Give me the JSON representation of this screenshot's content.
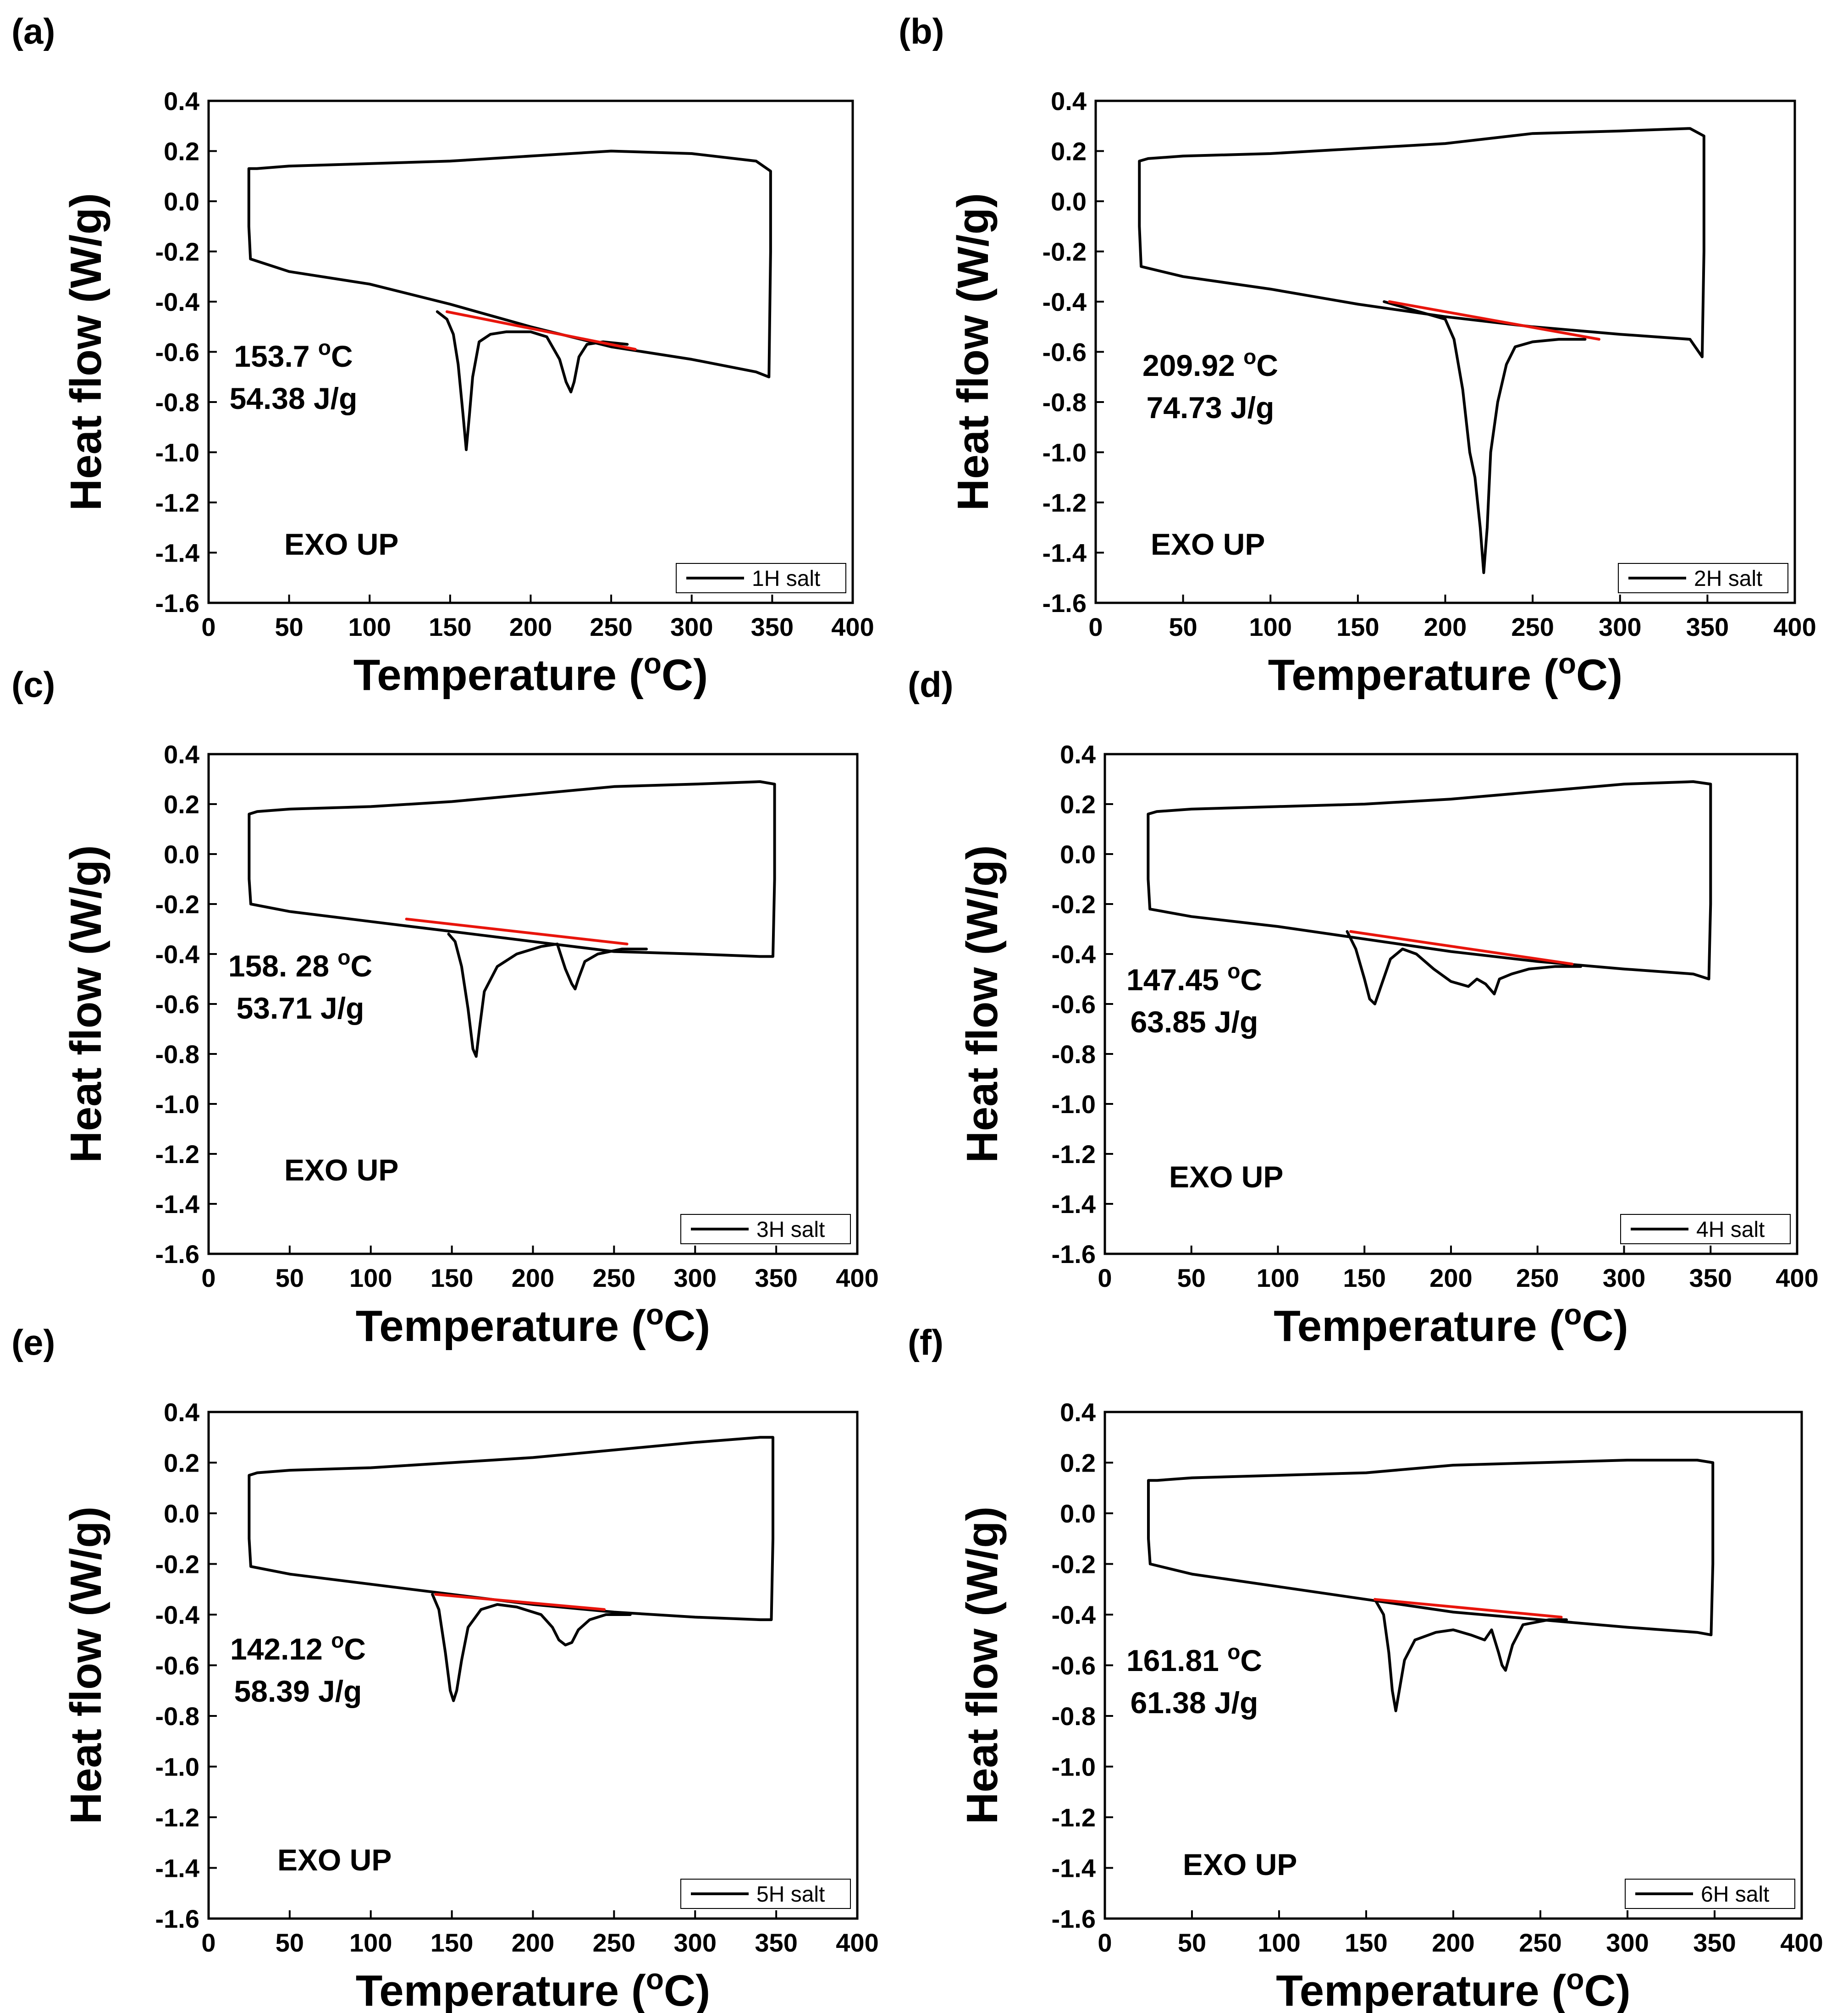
{
  "chart_data": [
    {
      "panel": "(a)",
      "type": "line",
      "xlabel": "Temperature (oC)",
      "ylabel": "Heat flow (W/g)",
      "xlim": [
        0,
        400
      ],
      "ylim": [
        -1.6,
        0.4
      ],
      "xticks": [
        "0",
        "50",
        "100",
        "150",
        "200",
        "250",
        "300",
        "350",
        "400"
      ],
      "yticks": [
        "0.4",
        "0.2",
        "0.0",
        "-0.2",
        "-0.4",
        "-0.6",
        "-0.8",
        "-1.0",
        "-1.2",
        "-1.4",
        "-1.6"
      ],
      "annotation_lines": [
        "153.7 oC",
        "54.38 J/g"
      ],
      "exo_label": "EXO UP",
      "legend": "1H salt",
      "series": [
        {
          "name": "1H salt",
          "color": "#000000",
          "x": [
            25,
            25,
            26,
            50,
            100,
            150,
            200,
            250,
            300,
            340,
            348,
            349,
            349,
            340,
            300,
            250,
            200,
            150,
            100,
            50,
            30,
            25,
            25
          ],
          "y": [
            0.13,
            -0.1,
            -0.23,
            -0.28,
            -0.33,
            -0.41,
            -0.5,
            -0.58,
            -0.63,
            -0.68,
            -0.7,
            -0.2,
            0.12,
            0.16,
            0.19,
            0.2,
            0.18,
            0.16,
            0.15,
            0.14,
            0.13,
            0.13,
            0.13
          ]
        },
        {
          "name": "1H peaks",
          "color": "#000000",
          "x": [
            142,
            148,
            152,
            155,
            158,
            160,
            162,
            164,
            168,
            175,
            185,
            200,
            210,
            218,
            222,
            225,
            227,
            230,
            235,
            245,
            260
          ],
          "y": [
            -0.44,
            -0.47,
            -0.53,
            -0.65,
            -0.85,
            -0.99,
            -0.85,
            -0.7,
            -0.56,
            -0.53,
            -0.52,
            -0.52,
            -0.54,
            -0.63,
            -0.72,
            -0.76,
            -0.72,
            -0.62,
            -0.57,
            -0.56,
            -0.57
          ]
        },
        {
          "name": "baseline",
          "color": "#e8150c",
          "x": [
            148,
            265
          ],
          "y": [
            -0.44,
            -0.59
          ]
        }
      ]
    },
    {
      "panel": "(b)",
      "type": "line",
      "xlabel": "Temperature (oC)",
      "ylabel": "Heat flow (W/g)",
      "xlim": [
        0,
        400
      ],
      "ylim": [
        -1.6,
        0.4
      ],
      "xticks": [
        "0",
        "50",
        "100",
        "150",
        "200",
        "250",
        "300",
        "350",
        "400"
      ],
      "yticks": [
        "0.4",
        "0.2",
        "0.0",
        "-0.2",
        "-0.4",
        "-0.6",
        "-0.8",
        "-1.0",
        "-1.2",
        "-1.4",
        "-1.6"
      ],
      "annotation_lines": [
        "209.92 oC",
        "74.73 J/g"
      ],
      "exo_label": "EXO UP",
      "legend": "2H salt",
      "series": [
        {
          "name": "2H salt",
          "color": "#000000",
          "x": [
            25,
            25,
            26,
            50,
            100,
            150,
            200,
            250,
            300,
            340,
            347,
            348,
            348,
            340,
            300,
            250,
            200,
            150,
            100,
            50,
            30,
            25,
            25
          ],
          "y": [
            0.16,
            -0.1,
            -0.26,
            -0.3,
            -0.35,
            -0.41,
            -0.46,
            -0.5,
            -0.53,
            -0.55,
            -0.62,
            -0.2,
            0.26,
            0.29,
            0.28,
            0.27,
            0.23,
            0.21,
            0.19,
            0.18,
            0.17,
            0.16,
            0.16
          ]
        },
        {
          "name": "2H peaks",
          "color": "#000000",
          "x": [
            165,
            185,
            200,
            205,
            210,
            214,
            217,
            220,
            222,
            224,
            226,
            230,
            235,
            240,
            250,
            265,
            280
          ],
          "y": [
            -0.4,
            -0.44,
            -0.47,
            -0.55,
            -0.75,
            -1.0,
            -1.1,
            -1.3,
            -1.48,
            -1.3,
            -1.0,
            -0.8,
            -0.65,
            -0.58,
            -0.56,
            -0.55,
            -0.55
          ]
        },
        {
          "name": "baseline",
          "color": "#e8150c",
          "x": [
            168,
            288
          ],
          "y": [
            -0.4,
            -0.55
          ]
        }
      ]
    },
    {
      "panel": "(c)",
      "type": "line",
      "xlabel": "Temperature (oC)",
      "ylabel": "Heat flow (W/g)",
      "xlim": [
        0,
        400
      ],
      "ylim": [
        -1.6,
        0.4
      ],
      "xticks": [
        "0",
        "50",
        "100",
        "150",
        "200",
        "250",
        "300",
        "350",
        "400"
      ],
      "yticks": [
        "0.4",
        "0.2",
        "0.0",
        "-0.2",
        "-0.4",
        "-0.6",
        "-0.8",
        "-1.0",
        "-1.2",
        "-1.4",
        "-1.6"
      ],
      "annotation_lines": [
        "158. 28 oC",
        "53.71 J/g"
      ],
      "exo_label": "EXO UP",
      "legend": "3H salt",
      "series": [
        {
          "name": "3H salt",
          "color": "#000000",
          "x": [
            25,
            25,
            26,
            50,
            100,
            150,
            200,
            250,
            300,
            340,
            348,
            349,
            349,
            340,
            300,
            250,
            200,
            150,
            100,
            50,
            30,
            25,
            25
          ],
          "y": [
            0.16,
            -0.1,
            -0.2,
            -0.23,
            -0.27,
            -0.31,
            -0.35,
            -0.39,
            -0.4,
            -0.41,
            -0.41,
            -0.1,
            0.28,
            0.29,
            0.28,
            0.27,
            0.24,
            0.21,
            0.19,
            0.18,
            0.17,
            0.16,
            0.16
          ]
        },
        {
          "name": "3H peaks",
          "color": "#000000",
          "x": [
            148,
            152,
            156,
            160,
            163,
            165,
            167,
            170,
            178,
            190,
            205,
            215,
            218,
            220,
            224,
            226,
            228,
            232,
            240,
            255,
            270
          ],
          "y": [
            -0.32,
            -0.35,
            -0.45,
            -0.62,
            -0.78,
            -0.81,
            -0.7,
            -0.55,
            -0.45,
            -0.4,
            -0.37,
            -0.36,
            -0.42,
            -0.46,
            -0.52,
            -0.54,
            -0.5,
            -0.43,
            -0.4,
            -0.38,
            -0.38
          ]
        },
        {
          "name": "baseline",
          "color": "#e8150c",
          "x": [
            122,
            258
          ],
          "y": [
            -0.26,
            -0.36
          ]
        }
      ]
    },
    {
      "panel": "(d)",
      "type": "line",
      "xlabel": "Temperature (oC)",
      "ylabel": "Heat flow (W/g)",
      "xlim": [
        0,
        400
      ],
      "ylim": [
        -1.6,
        0.4
      ],
      "xticks": [
        "0",
        "50",
        "100",
        "150",
        "200",
        "250",
        "300",
        "350",
        "400"
      ],
      "yticks": [
        "0.4",
        "0.2",
        "0.0",
        "-0.2",
        "-0.4",
        "-0.6",
        "-0.8",
        "-1.0",
        "-1.2",
        "-1.4",
        "-1.6"
      ],
      "annotation_lines": [
        "147.45 oC",
        "63.85 J/g"
      ],
      "exo_label": "EXO UP",
      "legend": "4H salt",
      "series": [
        {
          "name": "4H salt",
          "color": "#000000",
          "x": [
            25,
            25,
            26,
            50,
            100,
            150,
            200,
            250,
            300,
            340,
            349,
            350,
            350,
            340,
            300,
            250,
            200,
            150,
            100,
            50,
            30,
            25,
            25
          ],
          "y": [
            0.16,
            -0.1,
            -0.22,
            -0.25,
            -0.29,
            -0.34,
            -0.39,
            -0.43,
            -0.46,
            -0.48,
            -0.5,
            -0.2,
            0.28,
            0.29,
            0.28,
            0.25,
            0.22,
            0.2,
            0.19,
            0.18,
            0.17,
            0.16,
            0.16
          ]
        },
        {
          "name": "4H peaks",
          "color": "#000000",
          "x": [
            140,
            145,
            150,
            153,
            156,
            160,
            165,
            172,
            180,
            190,
            200,
            210,
            215,
            220,
            225,
            228,
            235,
            245,
            260,
            275
          ],
          "y": [
            -0.31,
            -0.38,
            -0.5,
            -0.58,
            -0.6,
            -0.52,
            -0.42,
            -0.38,
            -0.4,
            -0.46,
            -0.51,
            -0.53,
            -0.5,
            -0.52,
            -0.56,
            -0.5,
            -0.48,
            -0.46,
            -0.45,
            -0.45
          ]
        },
        {
          "name": "baseline",
          "color": "#e8150c",
          "x": [
            142,
            270
          ],
          "y": [
            -0.31,
            -0.44
          ]
        }
      ]
    },
    {
      "panel": "(e)",
      "type": "line",
      "xlabel": "Temperature (oC)",
      "ylabel": "Heat flow (W/g)",
      "xlim": [
        0,
        400
      ],
      "ylim": [
        -1.6,
        0.4
      ],
      "xticks": [
        "0",
        "50",
        "100",
        "150",
        "200",
        "250",
        "300",
        "350",
        "400"
      ],
      "yticks": [
        "0.4",
        "0.2",
        "0.0",
        "-0.2",
        "-0.4",
        "-0.6",
        "-0.8",
        "-1.0",
        "-1.2",
        "-1.4",
        "-1.6"
      ],
      "annotation_lines": [
        "142.12 oC",
        "58.39 J/g"
      ],
      "exo_label": "EXO UP",
      "legend": "5H salt",
      "series": [
        {
          "name": "5H salt",
          "color": "#000000",
          "x": [
            25,
            25,
            26,
            50,
            100,
            150,
            200,
            250,
            300,
            340,
            347,
            348,
            348,
            340,
            300,
            250,
            200,
            150,
            100,
            50,
            30,
            25,
            25
          ],
          "y": [
            0.15,
            -0.1,
            -0.21,
            -0.24,
            -0.28,
            -0.32,
            -0.36,
            -0.39,
            -0.41,
            -0.42,
            -0.42,
            -0.1,
            0.3,
            0.3,
            0.28,
            0.25,
            0.22,
            0.2,
            0.18,
            0.17,
            0.16,
            0.15,
            0.15
          ]
        },
        {
          "name": "5H peaks",
          "color": "#000000",
          "x": [
            138,
            142,
            146,
            149,
            151,
            153,
            156,
            160,
            168,
            178,
            190,
            205,
            212,
            216,
            220,
            224,
            228,
            235,
            245,
            260
          ],
          "y": [
            -0.32,
            -0.38,
            -0.55,
            -0.7,
            -0.74,
            -0.7,
            -0.58,
            -0.45,
            -0.38,
            -0.36,
            -0.37,
            -0.4,
            -0.45,
            -0.5,
            -0.52,
            -0.51,
            -0.46,
            -0.42,
            -0.4,
            -0.4
          ]
        },
        {
          "name": "baseline",
          "color": "#e8150c",
          "x": [
            140,
            244
          ],
          "y": [
            -0.32,
            -0.38
          ]
        }
      ]
    },
    {
      "panel": "(f)",
      "type": "line",
      "xlabel": "Temperature (oC)",
      "ylabel": "Heat flow (W/g)",
      "xlim": [
        0,
        400
      ],
      "ylim": [
        -1.6,
        0.4
      ],
      "xticks": [
        "0",
        "50",
        "100",
        "150",
        "200",
        "250",
        "300",
        "350",
        "400"
      ],
      "yticks": [
        "0.4",
        "0.2",
        "0.0",
        "-0.2",
        "-0.4",
        "-0.6",
        "-0.8",
        "-1.0",
        "-1.2",
        "-1.4",
        "-1.6"
      ],
      "annotation_lines": [
        "161.81 oC",
        "61.38 J/g"
      ],
      "exo_label": "EXO UP",
      "legend": "6H salt",
      "series": [
        {
          "name": "6H salt",
          "color": "#000000",
          "x": [
            25,
            25,
            26,
            50,
            100,
            150,
            200,
            250,
            300,
            340,
            348,
            349,
            349,
            340,
            300,
            250,
            200,
            150,
            100,
            50,
            30,
            25,
            25
          ],
          "y": [
            0.13,
            -0.1,
            -0.2,
            -0.24,
            -0.29,
            -0.34,
            -0.39,
            -0.42,
            -0.45,
            -0.47,
            -0.48,
            -0.2,
            0.2,
            0.21,
            0.21,
            0.2,
            0.19,
            0.16,
            0.15,
            0.14,
            0.13,
            0.13,
            0.13
          ]
        },
        {
          "name": "6H peaks",
          "color": "#000000",
          "x": [
            155,
            160,
            163,
            165,
            167,
            169,
            172,
            178,
            190,
            200,
            210,
            218,
            222,
            226,
            228,
            230,
            234,
            240,
            255,
            265
          ],
          "y": [
            -0.34,
            -0.4,
            -0.55,
            -0.7,
            -0.78,
            -0.7,
            -0.58,
            -0.5,
            -0.47,
            -0.46,
            -0.48,
            -0.5,
            -0.46,
            -0.55,
            -0.6,
            -0.62,
            -0.52,
            -0.44,
            -0.42,
            -0.42
          ]
        },
        {
          "name": "baseline",
          "color": "#e8150c",
          "x": [
            155,
            262
          ],
          "y": [
            -0.34,
            -0.41
          ]
        }
      ]
    }
  ]
}
